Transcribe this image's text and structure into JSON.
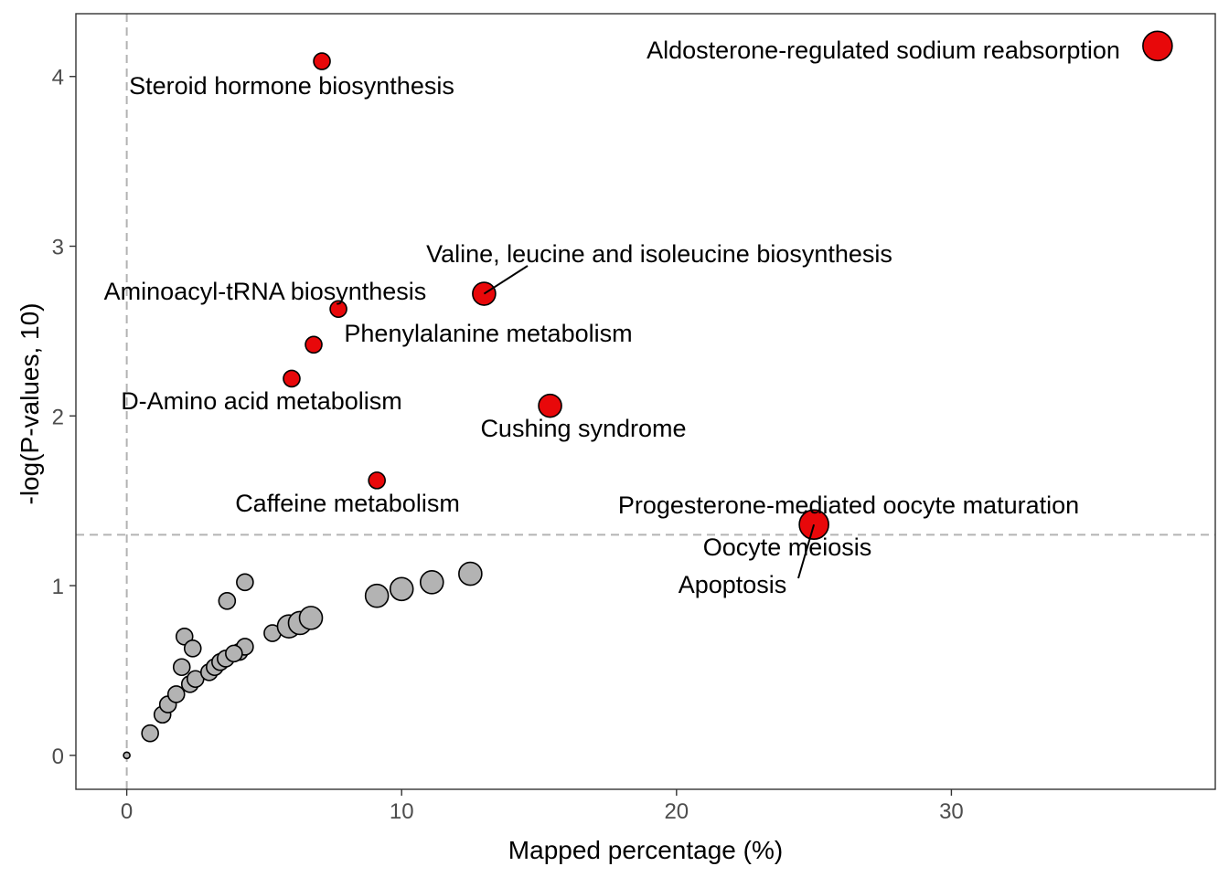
{
  "chart_data": {
    "type": "scatter",
    "xlabel": "Mapped percentage (%)",
    "ylabel": "-log(P-values, 10)",
    "xlim": [
      -1.85,
      39.6
    ],
    "ylim": [
      -0.2,
      4.37
    ],
    "x_ticks": [
      0,
      10,
      20,
      30
    ],
    "y_ticks": [
      0,
      1,
      2,
      3,
      4
    ],
    "x_tick_labels": [
      "0",
      "10",
      "20",
      "30"
    ],
    "y_tick_labels": [
      "0",
      "1",
      "2",
      "3",
      "4"
    ],
    "grid": false,
    "threshold_lines": {
      "x": 0,
      "y": 1.3
    },
    "colors": {
      "significant": "#e8080a",
      "non_significant": "#b3b3b3",
      "point_outline": "#000000",
      "threshold_line": "#b3b3b3",
      "panel_border": "#333333"
    },
    "significant_points": [
      {
        "label": "Aldosterone-regulated sodium reabsorption",
        "x": 37.5,
        "y": 4.18,
        "size_rank": 3
      },
      {
        "label": "Steroid hormone biosynthesis",
        "x": 7.1,
        "y": 4.09,
        "size_rank": 1
      },
      {
        "label": "Valine, leucine and isoleucine biosynthesis",
        "x": 13.0,
        "y": 2.72,
        "size_rank": 2
      },
      {
        "label": "Aminoacyl-tRNA biosynthesis",
        "x": 7.7,
        "y": 2.63,
        "size_rank": 1
      },
      {
        "label": "Phenylalanine metabolism",
        "x": 6.8,
        "y": 2.42,
        "size_rank": 1
      },
      {
        "label": "D-Amino acid metabolism",
        "x": 6.0,
        "y": 2.22,
        "size_rank": 1
      },
      {
        "label": "Cushing syndrome",
        "x": 15.4,
        "y": 2.06,
        "size_rank": 2
      },
      {
        "label": "Caffeine metabolism",
        "x": 9.1,
        "y": 1.62,
        "size_rank": 1
      },
      {
        "label": "Progesterone-mediated oocyte maturation",
        "x": 25.0,
        "y": 1.36,
        "size_rank": 3
      },
      {
        "label": "Oocyte meiosis",
        "x": 25.0,
        "y": 1.36,
        "size_rank": 3
      },
      {
        "label": "Apoptosis",
        "x": 25.0,
        "y": 1.36,
        "size_rank": 3
      }
    ],
    "non_significant_points": [
      {
        "x": 0.0,
        "y": 0.0,
        "size_rank": 0
      },
      {
        "x": 0.85,
        "y": 0.13,
        "size_rank": 1
      },
      {
        "x": 1.3,
        "y": 0.24,
        "size_rank": 1
      },
      {
        "x": 1.5,
        "y": 0.3,
        "size_rank": 1
      },
      {
        "x": 1.8,
        "y": 0.36,
        "size_rank": 1
      },
      {
        "x": 2.1,
        "y": 0.7,
        "size_rank": 1
      },
      {
        "x": 2.0,
        "y": 0.52,
        "size_rank": 1
      },
      {
        "x": 2.4,
        "y": 0.63,
        "size_rank": 1
      },
      {
        "x": 2.3,
        "y": 0.42,
        "size_rank": 1
      },
      {
        "x": 2.5,
        "y": 0.45,
        "size_rank": 1
      },
      {
        "x": 3.0,
        "y": 0.49,
        "size_rank": 1
      },
      {
        "x": 3.2,
        "y": 0.52,
        "size_rank": 1
      },
      {
        "x": 3.4,
        "y": 0.55,
        "size_rank": 1
      },
      {
        "x": 3.6,
        "y": 0.57,
        "size_rank": 1
      },
      {
        "x": 3.65,
        "y": 0.91,
        "size_rank": 1
      },
      {
        "x": 4.1,
        "y": 0.61,
        "size_rank": 1
      },
      {
        "x": 4.3,
        "y": 0.64,
        "size_rank": 1
      },
      {
        "x": 3.9,
        "y": 0.6,
        "size_rank": 1
      },
      {
        "x": 4.3,
        "y": 1.02,
        "size_rank": 1
      },
      {
        "x": 5.3,
        "y": 0.72,
        "size_rank": 1
      },
      {
        "x": 5.9,
        "y": 0.76,
        "size_rank": 2
      },
      {
        "x": 6.3,
        "y": 0.78,
        "size_rank": 2
      },
      {
        "x": 6.7,
        "y": 0.81,
        "size_rank": 2
      },
      {
        "x": 9.1,
        "y": 0.94,
        "size_rank": 2
      },
      {
        "x": 10.0,
        "y": 0.98,
        "size_rank": 2
      },
      {
        "x": 11.1,
        "y": 1.02,
        "size_rank": 2
      },
      {
        "x": 12.5,
        "y": 1.07,
        "size_rank": 2
      }
    ]
  }
}
